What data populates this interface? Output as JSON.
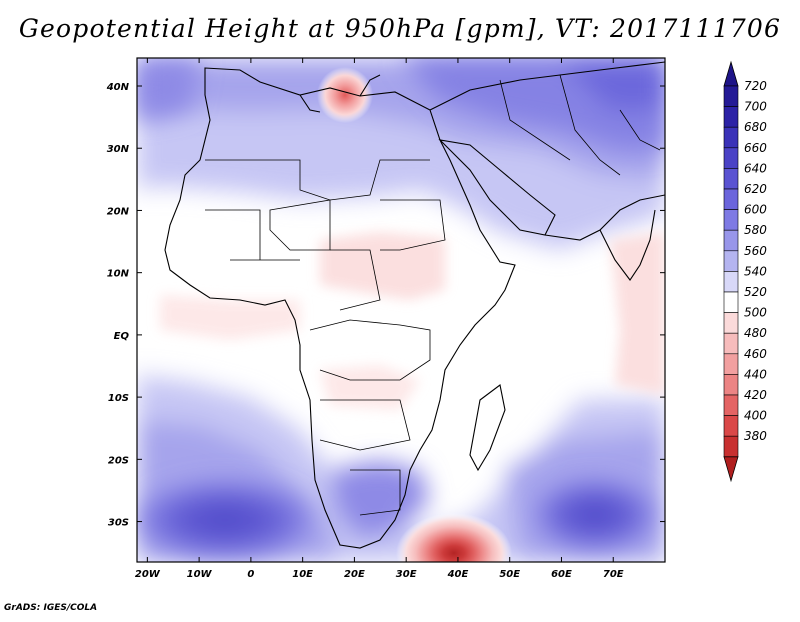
{
  "title": "Geopotential Height at 950hPa [gpm], VT: 2017111706",
  "credit": "GrADS: IGES/COLA",
  "x_ticks": [
    {
      "label": "20W",
      "lon": -20
    },
    {
      "label": "10W",
      "lon": -10
    },
    {
      "label": "0",
      "lon": 0
    },
    {
      "label": "10E",
      "lon": 10
    },
    {
      "label": "20E",
      "lon": 20
    },
    {
      "label": "30E",
      "lon": 30
    },
    {
      "label": "40E",
      "lon": 40
    },
    {
      "label": "50E",
      "lon": 50
    },
    {
      "label": "60E",
      "lon": 60
    },
    {
      "label": "70E",
      "lon": 70
    }
  ],
  "y_ticks": [
    {
      "label": "40N",
      "lat": 40
    },
    {
      "label": "30N",
      "lat": 30
    },
    {
      "label": "20N",
      "lat": 20
    },
    {
      "label": "10N",
      "lat": 10
    },
    {
      "label": "EQ",
      "lat": 0
    },
    {
      "label": "10S",
      "lat": -10
    },
    {
      "label": "20S",
      "lat": -20
    },
    {
      "label": "30S",
      "lat": -30
    }
  ],
  "extent": {
    "lon_min": -22,
    "lon_max": 80,
    "lat_min": -36.5,
    "lat_max": 44.5
  },
  "colorbar": {
    "levels": [
      {
        "label": "720",
        "color": "#241a96"
      },
      {
        "label": "700",
        "color": "#2c22a6"
      },
      {
        "label": "680",
        "color": "#3a32b8"
      },
      {
        "label": "660",
        "color": "#4a42c6"
      },
      {
        "label": "640",
        "color": "#5a53d2"
      },
      {
        "label": "620",
        "color": "#6b65dc"
      },
      {
        "label": "600",
        "color": "#7e7ae4"
      },
      {
        "label": "580",
        "color": "#9896ea"
      },
      {
        "label": "560",
        "color": "#b4b4f0"
      },
      {
        "label": "540",
        "color": "#d8d8f8"
      },
      {
        "label": "520",
        "color": "#ffffff"
      },
      {
        "label": "500",
        "color": "#fbdada"
      },
      {
        "label": "480",
        "color": "#f7bcbc"
      },
      {
        "label": "460",
        "color": "#f2a0a0"
      },
      {
        "label": "440",
        "color": "#ec8484"
      },
      {
        "label": "420",
        "color": "#e46464"
      },
      {
        "label": "400",
        "color": "#da4848"
      },
      {
        "label": "380",
        "color": "#c83030"
      }
    ],
    "top_color": "#1e1488",
    "bottom_color": "#b01e1e"
  }
}
